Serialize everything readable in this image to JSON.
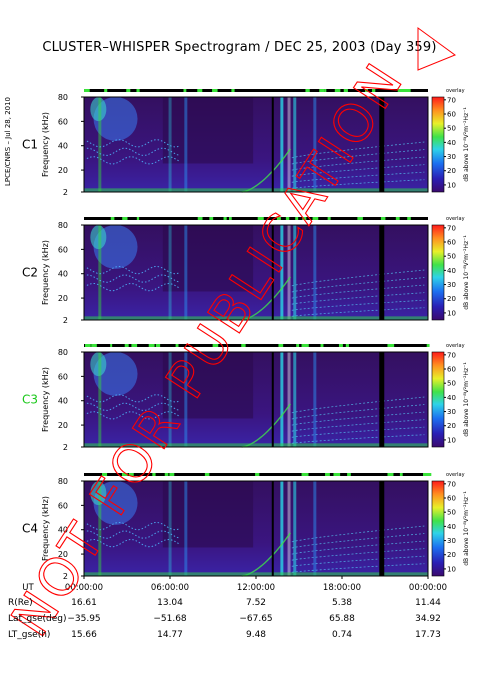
{
  "title": "CLUSTER–WHISPER Spectrogram / DEC 25, 2003 (Day 359)",
  "credit": "LPCE/CNRS – Jul 28, 2010",
  "watermark": "NOT FOR PUBLICATION",
  "colors": {
    "background": "#3a0f6e",
    "watermark": "#ff0000",
    "c3_label": "#19c819"
  },
  "chart_data": {
    "type": "heatmap",
    "panels": [
      {
        "name": "C1",
        "ylabel": "Frequency (kHz)",
        "yticks": [
          2,
          20,
          40,
          60,
          80
        ],
        "ylim": [
          2,
          80
        ]
      },
      {
        "name": "C2",
        "ylabel": "Frequency (kHz)",
        "yticks": [
          2,
          20,
          40,
          60,
          80
        ],
        "ylim": [
          2,
          80
        ]
      },
      {
        "name": "C3",
        "ylabel": "Frequency (kHz)",
        "yticks": [
          2,
          20,
          40,
          60,
          80
        ],
        "ylim": [
          2,
          80
        ]
      },
      {
        "name": "C4",
        "ylabel": "Frequency (kHz)",
        "yticks": [
          2,
          20,
          40,
          60,
          80
        ],
        "ylim": [
          2,
          80
        ]
      }
    ],
    "colorbar": {
      "label": "dB above 10⁻⁸V²m⁻²Hz⁻¹",
      "ticks": [
        10,
        20,
        30,
        40,
        50,
        60,
        70
      ],
      "range": [
        5,
        72
      ],
      "tag": "overlay"
    },
    "x_axis": {
      "label": "UT",
      "ticks": [
        "00:00:00",
        "06:00:00",
        "12:00:00",
        "18:00:00",
        "00:00:00"
      ],
      "range_hours": [
        0,
        24
      ]
    },
    "ephemeris": {
      "rows": [
        {
          "label": "R(Re)",
          "values": [
            "16.61",
            "13.04",
            "7.52",
            "5.38",
            "11.44"
          ]
        },
        {
          "label": "Lat_gse(deg)",
          "values": [
            "−35.95",
            "−51.68",
            "−67.65",
            "65.88",
            "34.92"
          ]
        },
        {
          "label": "LT_gse(h)",
          "values": [
            "15.66",
            "14.77",
            "9.48",
            "0.74",
            "17.73"
          ]
        }
      ]
    }
  }
}
